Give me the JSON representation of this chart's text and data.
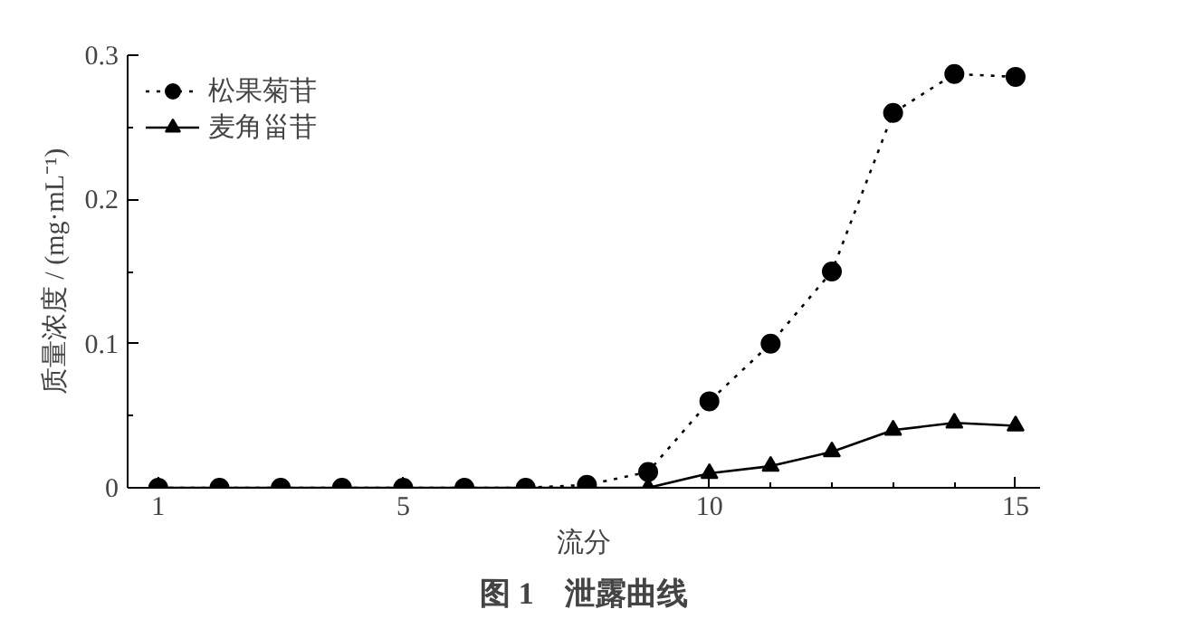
{
  "chart_data": {
    "type": "line",
    "title": "图 1　泄露曲线",
    "xlabel": "流分",
    "ylabel": "质量浓度 / (mg·mL⁻¹)",
    "x": [
      1,
      2,
      3,
      4,
      5,
      6,
      7,
      8,
      9,
      10,
      11,
      12,
      13,
      14,
      15
    ],
    "series": [
      {
        "name": "松果菊苷",
        "color": "#000000",
        "marker": "circle",
        "line_style": "dotted",
        "values": [
          0,
          0,
          0,
          0,
          0,
          0,
          0,
          0.002,
          0.011,
          0.06,
          0.1,
          0.15,
          0.26,
          0.287,
          0.285
        ]
      },
      {
        "name": "麦角甾苷",
        "color": "#000000",
        "marker": "triangle",
        "line_style": "solid",
        "values": [
          0,
          0,
          0,
          0,
          0,
          0,
          0,
          0,
          0,
          0.01,
          0.015,
          0.025,
          0.04,
          0.045,
          0.043
        ]
      }
    ],
    "xlim": [
      0.5,
      15.4
    ],
    "xticks": [
      1,
      5,
      10,
      15
    ],
    "ylim": [
      0,
      0.3
    ],
    "yticks": [
      0,
      0.1,
      0.2,
      0.3
    ],
    "grid": false,
    "legend": "top left"
  }
}
